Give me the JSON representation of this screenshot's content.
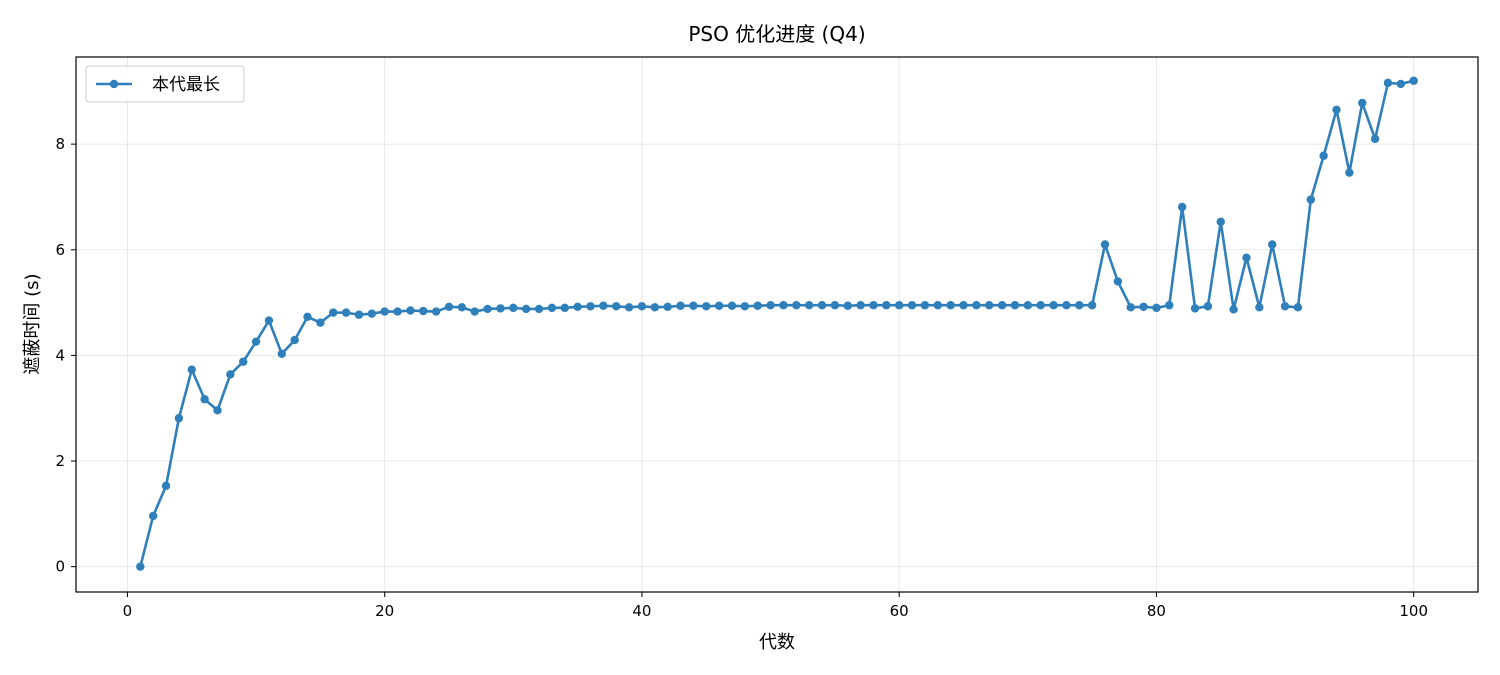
{
  "chart_data": {
    "type": "line",
    "title": "PSO 优化进度 (Q4)",
    "xlabel": "代数",
    "ylabel": "遮蔽时间 (s)",
    "xlim": [
      -4,
      105
    ],
    "ylim": [
      -0.48,
      9.65
    ],
    "xticks": [
      0,
      20,
      40,
      60,
      80,
      100
    ],
    "yticks": [
      0,
      2,
      4,
      6,
      8
    ],
    "grid": true,
    "legend_position": "top-left",
    "series": [
      {
        "name": "本代最长",
        "color": "#2f7fba",
        "marker": "circle",
        "x": [
          1,
          2,
          3,
          4,
          5,
          6,
          7,
          8,
          9,
          10,
          11,
          12,
          13,
          14,
          15,
          16,
          17,
          18,
          19,
          20,
          21,
          22,
          23,
          24,
          25,
          26,
          27,
          28,
          29,
          30,
          31,
          32,
          33,
          34,
          35,
          36,
          37,
          38,
          39,
          40,
          41,
          42,
          43,
          44,
          45,
          46,
          47,
          48,
          49,
          50,
          51,
          52,
          53,
          54,
          55,
          56,
          57,
          58,
          59,
          60,
          61,
          62,
          63,
          64,
          65,
          66,
          67,
          68,
          69,
          70,
          71,
          72,
          73,
          74,
          75,
          76,
          77,
          78,
          79,
          80,
          81,
          82,
          83,
          84,
          85,
          86,
          87,
          88,
          89,
          90,
          91,
          92,
          93,
          94,
          95,
          96,
          97,
          98,
          99,
          100
        ],
        "y": [
          0.0,
          0.96,
          1.53,
          2.81,
          3.73,
          3.17,
          2.96,
          3.64,
          3.88,
          4.26,
          4.66,
          4.03,
          4.29,
          4.73,
          4.62,
          4.81,
          4.81,
          4.77,
          4.79,
          4.83,
          4.83,
          4.85,
          4.84,
          4.83,
          4.92,
          4.91,
          4.83,
          4.88,
          4.89,
          4.9,
          4.88,
          4.88,
          4.9,
          4.9,
          4.92,
          4.93,
          4.94,
          4.93,
          4.91,
          4.93,
          4.91,
          4.92,
          4.94,
          4.94,
          4.93,
          4.94,
          4.94,
          4.93,
          4.94,
          4.95,
          4.95,
          4.95,
          4.95,
          4.95,
          4.95,
          4.94,
          4.95,
          4.95,
          4.95,
          4.95,
          4.95,
          4.95,
          4.95,
          4.95,
          4.95,
          4.95,
          4.95,
          4.95,
          4.95,
          4.95,
          4.95,
          4.95,
          4.95,
          4.95,
          4.95,
          6.1,
          5.4,
          4.91,
          4.92,
          4.9,
          4.95,
          6.81,
          4.89,
          4.93,
          6.53,
          4.87,
          5.85,
          4.91,
          6.1,
          4.93,
          4.91,
          6.95,
          7.78,
          8.65,
          7.46,
          8.78,
          8.1,
          9.16,
          9.14,
          9.2
        ]
      }
    ]
  }
}
